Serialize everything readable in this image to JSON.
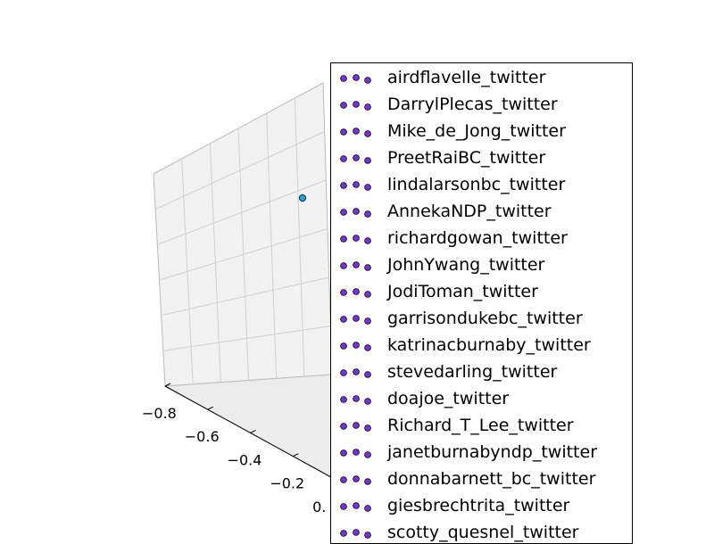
{
  "chart_data": {
    "type": "scatter",
    "projection": "3d",
    "title": "",
    "xlabel": "",
    "ylabel": "",
    "zlabel": "",
    "x_ticks": [
      "−0.8",
      "−0.6",
      "−0.4",
      "−0.2",
      "0."
    ],
    "x_tick_values": [
      -0.8,
      -0.6,
      -0.4,
      -0.2,
      0.0
    ],
    "grid": true,
    "legend_placement": "right, overlapping axes",
    "marker_color_legend": "#7b2fe0",
    "color_scale": "rainbow",
    "series_names": [
      "airdflavelle_twitter",
      "DarrylPlecas_twitter",
      "Mike_de_Jong_twitter",
      "PreetRaiBC_twitter",
      "lindalarsonbc_twitter",
      "AnnekaNDP_twitter",
      "richardgowan_twitter",
      "JohnYwang_twitter",
      "JodiToman_twitter",
      "garrisondukebc_twitter",
      "katrinacburnaby_twitter",
      "stevedarling_twitter",
      "doajoe_twitter",
      "Richard_T_Lee_twitter",
      "janetburnabyndp_twitter",
      "donnabarnett_bc_twitter",
      "giesbrechtrita_twitter",
      "scotty_quesnel_twitter"
    ],
    "outlier_point": {
      "color": "#1aa7e8"
    }
  }
}
